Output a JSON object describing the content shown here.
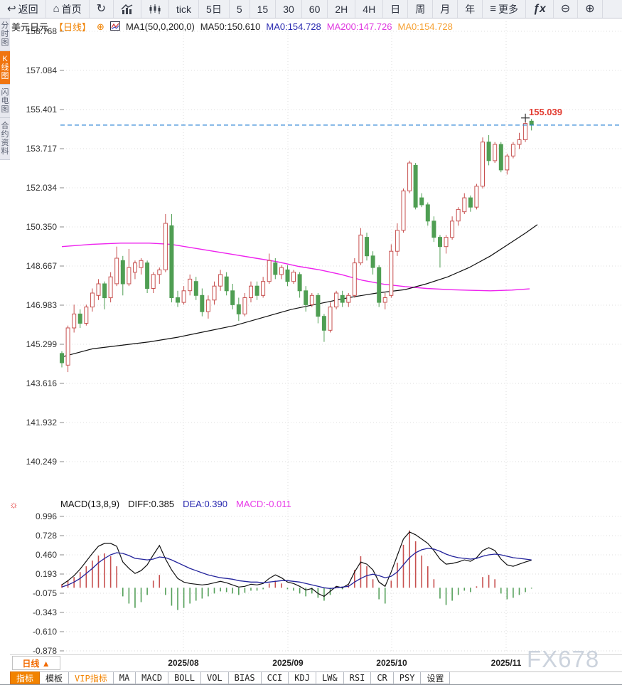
{
  "toolbar": {
    "items": [
      {
        "id": "back",
        "icon": "back-icon",
        "label": "返回"
      },
      {
        "id": "home",
        "icon": "home-icon",
        "label": "首页"
      },
      {
        "id": "refresh",
        "icon": "refresh-icon",
        "label": ""
      },
      {
        "id": "bar-chart",
        "icon": "bar-chart-icon",
        "label": ""
      },
      {
        "id": "candlestick",
        "icon": "candlestick-icon",
        "label": ""
      },
      {
        "id": "tick",
        "icon": "",
        "label": "tick"
      },
      {
        "id": "5d",
        "icon": "",
        "label": "5日"
      },
      {
        "id": "m5",
        "icon": "",
        "label": "5"
      },
      {
        "id": "m15",
        "icon": "",
        "label": "15"
      },
      {
        "id": "m30",
        "icon": "",
        "label": "30"
      },
      {
        "id": "m60",
        "icon": "",
        "label": "60"
      },
      {
        "id": "h2",
        "icon": "",
        "label": "2H"
      },
      {
        "id": "h4",
        "icon": "",
        "label": "4H"
      },
      {
        "id": "day",
        "icon": "",
        "label": "日"
      },
      {
        "id": "week",
        "icon": "",
        "label": "周"
      },
      {
        "id": "month",
        "icon": "",
        "label": "月"
      },
      {
        "id": "year",
        "icon": "",
        "label": "年"
      },
      {
        "id": "more",
        "icon": "menu-icon",
        "label": "更多"
      },
      {
        "id": "formula",
        "icon": "fx-icon",
        "label": ""
      },
      {
        "id": "zoom-out",
        "icon": "zoom-out-icon",
        "label": ""
      },
      {
        "id": "zoom-in",
        "icon": "zoom-in-icon",
        "label": ""
      }
    ]
  },
  "sidebar": {
    "tabs": [
      {
        "id": "time-share",
        "label": "分时图",
        "active": false
      },
      {
        "id": "kline",
        "label": "K线图",
        "active": true
      },
      {
        "id": "lightning",
        "label": "闪电图",
        "active": false
      },
      {
        "id": "contract-info",
        "label": "合约资料",
        "active": false
      }
    ]
  },
  "chart_header": {
    "symbol": "美元日元",
    "period_tag": "【日线】",
    "ma_settings": "MA1(50,0,200,0)",
    "ma50": "MA50:150.610",
    "ma0_blue": "MA0:154.728",
    "ma200": "MA200:147.726",
    "ma0_orange": "MA0:154.728"
  },
  "macd_header": {
    "title": "MACD(13,8,9)",
    "diff": "DIFF:0.385",
    "dea": "DEA:0.390",
    "macd": "MACD:-0.011"
  },
  "price_marker": {
    "label": "155.039"
  },
  "bottom": {
    "period_selector": "日线 ▲",
    "tabs": [
      {
        "label": "指标",
        "active": true,
        "vip": false
      },
      {
        "label": "模板",
        "active": false,
        "vip": false
      },
      {
        "label": "VIP指标",
        "active": false,
        "vip": true
      },
      {
        "label": "MA",
        "active": false,
        "vip": false
      },
      {
        "label": "MACD",
        "active": false,
        "vip": false
      },
      {
        "label": "BOLL",
        "active": false,
        "vip": false
      },
      {
        "label": "VOL",
        "active": false,
        "vip": false
      },
      {
        "label": "BIAS",
        "active": false,
        "vip": false
      },
      {
        "label": "CCI",
        "active": false,
        "vip": false
      },
      {
        "label": "KDJ",
        "active": false,
        "vip": false
      },
      {
        "label": "LW&",
        "active": false,
        "vip": false
      },
      {
        "label": "RSI",
        "active": false,
        "vip": false
      },
      {
        "label": "CR",
        "active": false,
        "vip": false
      },
      {
        "label": "PSY",
        "active": false,
        "vip": false
      },
      {
        "label": "设置",
        "active": false,
        "vip": false
      }
    ]
  },
  "watermark": "FX678",
  "colors": {
    "up_candle": "#c7504f",
    "down_candle": "#4f9e53",
    "ma50_line": "#111111",
    "ma200_line": "#ee22ee",
    "diff_line": "#111111",
    "dea_line": "#23239b",
    "hist_up": "#c7504f",
    "hist_down": "#55a05a",
    "current_price_line": "#2e86d6",
    "price_label": "#e23b30",
    "accent_orange": "#f08200",
    "grid": "#dcdcdc"
  },
  "chart_data": {
    "type": "candlestick+macd",
    "title": "美元日元 日线 (USD/JPY Daily)",
    "y_ticks": [
      "158.768",
      "157.084",
      "155.401",
      "153.717",
      "152.034",
      "150.350",
      "148.667",
      "146.983",
      "145.299",
      "143.616",
      "141.932",
      "140.249"
    ],
    "x_labels": [
      "2025/08",
      "2025/09",
      "2025/10",
      "2025/11"
    ],
    "current_price": 154.728,
    "high_marker": 155.039,
    "candles": [
      [
        144.9,
        145.0,
        144.3,
        144.5
      ],
      [
        144.4,
        146.1,
        144.1,
        146.0
      ],
      [
        146.0,
        147.0,
        145.8,
        146.6
      ],
      [
        146.6,
        146.8,
        146.0,
        146.2
      ],
      [
        146.2,
        147.0,
        146.1,
        146.9
      ],
      [
        146.9,
        147.7,
        146.7,
        147.5
      ],
      [
        147.4,
        148.1,
        147.2,
        147.9
      ],
      [
        147.9,
        148.0,
        146.8,
        147.3
      ],
      [
        147.3,
        148.4,
        147.1,
        148.2
      ],
      [
        147.9,
        149.5,
        147.8,
        149.0
      ],
      [
        148.9,
        149.1,
        147.4,
        147.9
      ],
      [
        147.9,
        149.4,
        147.8,
        148.6
      ],
      [
        148.4,
        148.9,
        148.1,
        148.8
      ],
      [
        148.6,
        149.0,
        148.3,
        148.9
      ],
      [
        148.8,
        148.9,
        147.5,
        147.7
      ],
      [
        147.7,
        148.4,
        147.5,
        148.3
      ],
      [
        148.3,
        148.6,
        147.9,
        148.5
      ],
      [
        148.5,
        150.9,
        148.4,
        150.5
      ],
      [
        150.4,
        150.9,
        147.1,
        147.3
      ],
      [
        147.3,
        147.6,
        146.9,
        147.1
      ],
      [
        147.1,
        147.8,
        147.0,
        147.6
      ],
      [
        147.6,
        148.3,
        147.4,
        148.1
      ],
      [
        148.0,
        148.2,
        147.2,
        147.4
      ],
      [
        147.4,
        147.7,
        146.5,
        146.7
      ],
      [
        146.7,
        147.4,
        146.4,
        147.2
      ],
      [
        147.2,
        148.0,
        147.0,
        147.8
      ],
      [
        147.8,
        148.5,
        147.6,
        148.3
      ],
      [
        148.2,
        148.4,
        147.4,
        147.6
      ],
      [
        147.6,
        147.9,
        146.8,
        147.0
      ],
      [
        147.0,
        147.3,
        146.3,
        146.6
      ],
      [
        146.6,
        147.5,
        146.5,
        147.3
      ],
      [
        147.3,
        148.0,
        147.1,
        147.8
      ],
      [
        147.8,
        148.0,
        147.2,
        147.4
      ],
      [
        147.4,
        148.2,
        147.3,
        148.0
      ],
      [
        148.0,
        149.2,
        147.9,
        148.9
      ],
      [
        148.8,
        149.0,
        148.1,
        148.3
      ],
      [
        148.3,
        148.7,
        148.1,
        148.6
      ],
      [
        148.5,
        148.7,
        147.8,
        148.0
      ],
      [
        148.0,
        148.5,
        147.9,
        148.4
      ],
      [
        148.3,
        148.4,
        147.3,
        147.6
      ],
      [
        147.6,
        147.8,
        146.7,
        147.0
      ],
      [
        147.0,
        147.5,
        146.9,
        147.4
      ],
      [
        147.4,
        147.5,
        146.2,
        146.5
      ],
      [
        146.5,
        146.6,
        145.4,
        145.9
      ],
      [
        145.9,
        147.1,
        145.8,
        146.9
      ],
      [
        146.9,
        147.6,
        146.8,
        147.5
      ],
      [
        147.4,
        147.6,
        146.9,
        147.1
      ],
      [
        147.1,
        147.5,
        146.9,
        147.4
      ],
      [
        147.4,
        149.0,
        147.3,
        148.8
      ],
      [
        148.8,
        150.3,
        148.7,
        150.0
      ],
      [
        149.9,
        150.1,
        148.9,
        149.1
      ],
      [
        149.1,
        149.3,
        148.3,
        148.6
      ],
      [
        148.6,
        148.7,
        146.9,
        147.1
      ],
      [
        147.1,
        147.5,
        146.8,
        147.3
      ],
      [
        147.4,
        149.6,
        147.3,
        149.3
      ],
      [
        149.3,
        150.5,
        149.1,
        150.2
      ],
      [
        150.2,
        152.0,
        150.1,
        151.9
      ],
      [
        151.9,
        153.2,
        151.8,
        153.1
      ],
      [
        153.0,
        153.1,
        151.1,
        151.2
      ],
      [
        151.6,
        151.8,
        151.2,
        151.3
      ],
      [
        151.3,
        151.4,
        150.4,
        150.6
      ],
      [
        150.6,
        150.8,
        149.7,
        149.9
      ],
      [
        149.9,
        150.0,
        148.6,
        149.5
      ],
      [
        149.5,
        150.0,
        149.2,
        149.9
      ],
      [
        149.9,
        150.8,
        149.8,
        150.6
      ],
      [
        150.6,
        151.2,
        150.4,
        151.1
      ],
      [
        151.0,
        151.8,
        150.9,
        151.6
      ],
      [
        151.6,
        151.7,
        151.0,
        151.2
      ],
      [
        151.2,
        152.2,
        151.1,
        152.1
      ],
      [
        152.1,
        154.2,
        152.0,
        154.0
      ],
      [
        154.0,
        154.3,
        153.0,
        153.2
      ],
      [
        153.2,
        154.0,
        153.1,
        153.9
      ],
      [
        153.9,
        154.0,
        152.7,
        152.8
      ],
      [
        152.8,
        153.5,
        152.6,
        153.4
      ],
      [
        153.4,
        154.0,
        153.3,
        153.9
      ],
      [
        153.9,
        154.4,
        153.7,
        154.1
      ],
      [
        154.1,
        155.04,
        154.0,
        154.8
      ],
      [
        154.9,
        155.0,
        154.5,
        154.73
      ]
    ],
    "ma50_points": [
      [
        87,
        144.75
      ],
      [
        130,
        145.1
      ],
      [
        170,
        145.25
      ],
      [
        210,
        145.4
      ],
      [
        250,
        145.6
      ],
      [
        290,
        145.85
      ],
      [
        330,
        146.1
      ],
      [
        370,
        146.45
      ],
      [
        410,
        146.8
      ],
      [
        450,
        147.05
      ],
      [
        490,
        147.3
      ],
      [
        530,
        147.5
      ],
      [
        570,
        147.65
      ],
      [
        600,
        147.9
      ],
      [
        630,
        148.2
      ],
      [
        660,
        148.6
      ],
      [
        690,
        149.1
      ],
      [
        720,
        149.7
      ],
      [
        740,
        150.1
      ],
      [
        756,
        150.45
      ]
    ],
    "ma200_points": [
      [
        87,
        149.5
      ],
      [
        130,
        149.6
      ],
      [
        170,
        149.65
      ],
      [
        210,
        149.65
      ],
      [
        240,
        149.6
      ],
      [
        270,
        149.45
      ],
      [
        300,
        149.3
      ],
      [
        330,
        149.15
      ],
      [
        360,
        149.0
      ],
      [
        390,
        148.85
      ],
      [
        420,
        148.65
      ],
      [
        450,
        148.5
      ],
      [
        480,
        148.3
      ],
      [
        510,
        148.05
      ],
      [
        540,
        147.88
      ],
      [
        570,
        147.78
      ],
      [
        600,
        147.7
      ],
      [
        630,
        147.65
      ],
      [
        660,
        147.62
      ],
      [
        690,
        147.6
      ],
      [
        720,
        147.63
      ],
      [
        745,
        147.68
      ]
    ],
    "macd": {
      "y_ticks": [
        "0.996",
        "0.728",
        "0.460",
        "0.193",
        "-0.075",
        "-0.343",
        "-0.610",
        "-0.878"
      ],
      "hist": [
        0.05,
        0.1,
        0.15,
        0.22,
        0.3,
        0.38,
        0.45,
        0.48,
        0.44,
        0.3,
        -0.12,
        -0.22,
        -0.28,
        -0.2,
        -0.1,
        0.1,
        0.18,
        -0.1,
        -0.25,
        -0.31,
        -0.28,
        -0.22,
        -0.18,
        -0.15,
        -0.12,
        -0.08,
        -0.05,
        -0.06,
        -0.08,
        -0.1,
        -0.07,
        -0.04,
        -0.04,
        -0.02,
        0.06,
        0.1,
        0.06,
        -0.02,
        -0.04,
        -0.08,
        -0.12,
        -0.08,
        -0.14,
        -0.18,
        -0.1,
        0.02,
        -0.02,
        0.04,
        0.25,
        0.44,
        0.3,
        0.12,
        -0.16,
        -0.22,
        0.1,
        0.35,
        0.6,
        0.8,
        0.65,
        0.45,
        0.3,
        0.12,
        -0.15,
        -0.24,
        -0.18,
        -0.1,
        -0.04,
        -0.06,
        0.02,
        0.15,
        0.18,
        0.12,
        -0.08,
        -0.16,
        -0.14,
        -0.1,
        -0.06,
        -0.011
      ],
      "diff": [
        0.04,
        0.1,
        0.17,
        0.26,
        0.37,
        0.48,
        0.58,
        0.62,
        0.62,
        0.58,
        0.36,
        0.27,
        0.2,
        0.24,
        0.32,
        0.46,
        0.59,
        0.4,
        0.25,
        0.13,
        0.08,
        0.06,
        0.05,
        0.04,
        0.05,
        0.07,
        0.09,
        0.07,
        0.04,
        0.01,
        0.02,
        0.05,
        0.04,
        0.06,
        0.13,
        0.18,
        0.14,
        0.08,
        0.06,
        0.02,
        -0.03,
        -0.01,
        -0.08,
        -0.12,
        -0.05,
        0.02,
        0.0,
        0.05,
        0.22,
        0.36,
        0.33,
        0.25,
        0.08,
        0.02,
        0.22,
        0.45,
        0.68,
        0.78,
        0.74,
        0.68,
        0.62,
        0.52,
        0.4,
        0.33,
        0.34,
        0.36,
        0.39,
        0.37,
        0.42,
        0.52,
        0.56,
        0.52,
        0.4,
        0.32,
        0.3,
        0.33,
        0.36,
        0.385
      ],
      "dea": [
        0.01,
        0.04,
        0.08,
        0.13,
        0.2,
        0.27,
        0.35,
        0.41,
        0.46,
        0.49,
        0.48,
        0.45,
        0.41,
        0.4,
        0.39,
        0.4,
        0.43,
        0.42,
        0.39,
        0.35,
        0.31,
        0.27,
        0.24,
        0.21,
        0.18,
        0.16,
        0.14,
        0.13,
        0.12,
        0.1,
        0.09,
        0.08,
        0.08,
        0.07,
        0.08,
        0.09,
        0.1,
        0.1,
        0.09,
        0.08,
        0.06,
        0.04,
        0.02,
        0.0,
        -0.01,
        0.0,
        0.01,
        0.02,
        0.08,
        0.13,
        0.17,
        0.19,
        0.17,
        0.14,
        0.16,
        0.22,
        0.32,
        0.42,
        0.49,
        0.53,
        0.55,
        0.54,
        0.51,
        0.47,
        0.44,
        0.42,
        0.41,
        0.4,
        0.41,
        0.44,
        0.46,
        0.47,
        0.46,
        0.44,
        0.42,
        0.41,
        0.4,
        0.39
      ]
    },
    "legend_position": "top-left-overlay",
    "grid": true
  }
}
